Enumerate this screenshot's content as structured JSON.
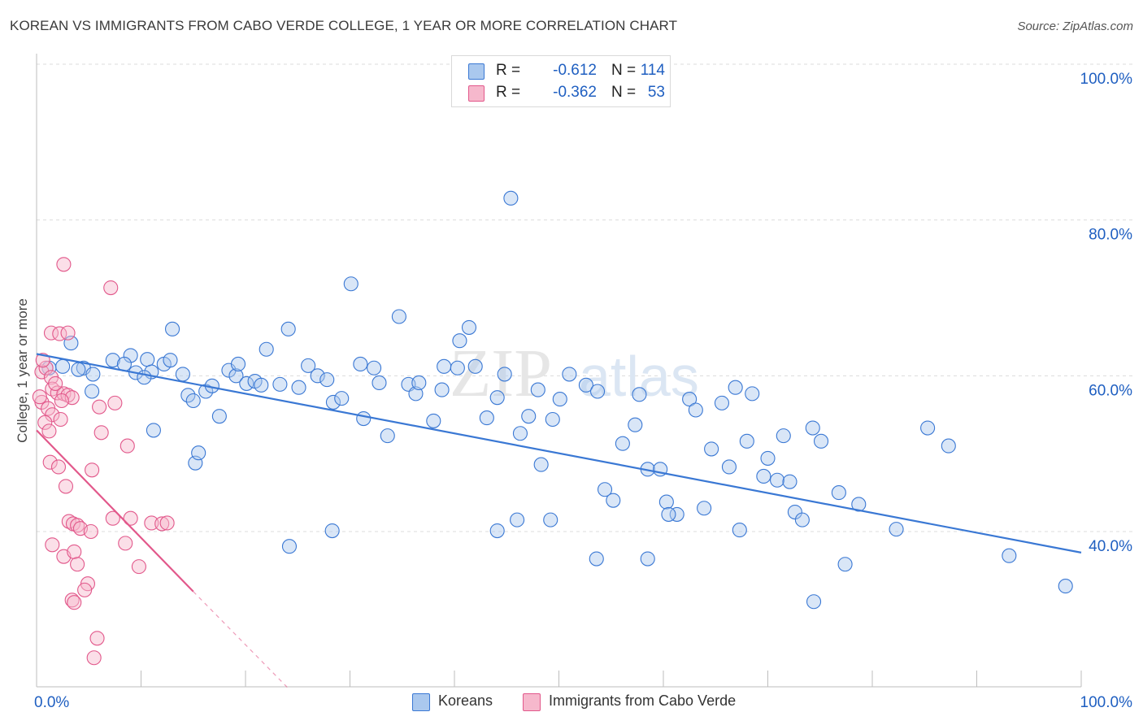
{
  "title": "KOREAN VS IMMIGRANTS FROM CABO VERDE COLLEGE, 1 YEAR OR MORE CORRELATION CHART",
  "source": "Source: ZipAtlas.com",
  "watermark": {
    "zip": "ZIP",
    "atlas": "atlas"
  },
  "colors": {
    "blue": "#3a78d4",
    "blue_fill": "#aac8ee",
    "blue_text": "#1f5fc1",
    "pink": "#e2588b",
    "pink_fill": "#f6b8cc",
    "grid": "#dcdcdc",
    "axis": "#bdbdbd"
  },
  "legend": {
    "rows": [
      {
        "r_label": "R =",
        "r_value": "-0.612",
        "n_label": "N =",
        "n_value": "114"
      },
      {
        "r_label": "R =",
        "r_value": "-0.362",
        "n_label": "N =",
        "n_value": "53"
      }
    ]
  },
  "chart_data": {
    "type": "scatter",
    "title": "KOREAN VS IMMIGRANTS FROM CABO VERDE COLLEGE, 1 YEAR OR MORE CORRELATION CHART",
    "xlabel": "",
    "ylabel": "College, 1 year or more",
    "xlim": [
      0,
      100
    ],
    "ylim": [
      20,
      100
    ],
    "x_tick_labels": [
      "0.0%",
      "100.0%"
    ],
    "y_ticks": [
      {
        "value": 100,
        "label": "100.0%"
      },
      {
        "value": 80,
        "label": "80.0%"
      },
      {
        "value": 60,
        "label": "60.0%"
      },
      {
        "value": 40,
        "label": "40.0%"
      }
    ],
    "series": [
      {
        "name": "Koreans",
        "color": "blue",
        "trend": {
          "x0": 0,
          "y0": 62.8,
          "x1": 100,
          "y1": 37.3
        },
        "points": [
          [
            1.2,
            61
          ],
          [
            2.5,
            61.2
          ],
          [
            4.5,
            61
          ],
          [
            3.3,
            64.2
          ],
          [
            4,
            60.8
          ],
          [
            7.3,
            62
          ],
          [
            9,
            62.6
          ],
          [
            5.3,
            58
          ],
          [
            10.6,
            62.1
          ],
          [
            8.4,
            61.5
          ],
          [
            5.4,
            60.2
          ],
          [
            11,
            60.5
          ],
          [
            9.5,
            60.4
          ],
          [
            12.2,
            61.5
          ],
          [
            10.3,
            59.8
          ],
          [
            14.5,
            57.5
          ],
          [
            13,
            66
          ],
          [
            11.2,
            53
          ],
          [
            15,
            56.8
          ],
          [
            14,
            60.2
          ],
          [
            12.8,
            62
          ],
          [
            15.2,
            48.8
          ],
          [
            15.5,
            50.1
          ],
          [
            16.2,
            58
          ],
          [
            16.8,
            58.7
          ],
          [
            17.5,
            54.8
          ],
          [
            18.4,
            60.7
          ],
          [
            19.1,
            60
          ],
          [
            20.1,
            59
          ],
          [
            20.9,
            59.3
          ],
          [
            22,
            63.4
          ],
          [
            21.5,
            58.8
          ],
          [
            23.3,
            58.9
          ],
          [
            24.1,
            66
          ],
          [
            25.1,
            58.5
          ],
          [
            26,
            61.3
          ],
          [
            26.9,
            60
          ],
          [
            27.8,
            59.5
          ],
          [
            28.4,
            56.6
          ],
          [
            29.2,
            57.1
          ],
          [
            30.1,
            71.8
          ],
          [
            31,
            61.5
          ],
          [
            32.3,
            61
          ],
          [
            31.3,
            54.5
          ],
          [
            32.8,
            59.1
          ],
          [
            33.6,
            52.3
          ],
          [
            34.7,
            67.6
          ],
          [
            35.6,
            58.9
          ],
          [
            36.3,
            57.7
          ],
          [
            36.6,
            59.1
          ],
          [
            38,
            54.2
          ],
          [
            38.8,
            58.2
          ],
          [
            39,
            61.2
          ],
          [
            40.3,
            61
          ],
          [
            40.5,
            64.5
          ],
          [
            41.4,
            66.2
          ],
          [
            42,
            61.2
          ],
          [
            43.1,
            54.6
          ],
          [
            44.1,
            57.2
          ],
          [
            44.8,
            60.2
          ],
          [
            45.4,
            82.8
          ],
          [
            46.3,
            52.6
          ],
          [
            47.1,
            54.8
          ],
          [
            48,
            58.2
          ],
          [
            48.3,
            48.6
          ],
          [
            49.4,
            54.4
          ],
          [
            50.1,
            57
          ],
          [
            51,
            60.2
          ],
          [
            52.6,
            58.8
          ],
          [
            53.7,
            58
          ],
          [
            54.4,
            45.4
          ],
          [
            55.2,
            44
          ],
          [
            56.1,
            51.3
          ],
          [
            57.3,
            53.7
          ],
          [
            57.7,
            57.6
          ],
          [
            58.5,
            48
          ],
          [
            59.7,
            48
          ],
          [
            60.3,
            43.8
          ],
          [
            61.3,
            42.2
          ],
          [
            62.5,
            57
          ],
          [
            63.1,
            55.6
          ],
          [
            63.9,
            43
          ],
          [
            64.6,
            50.6
          ],
          [
            65.6,
            56.5
          ],
          [
            66.3,
            48.3
          ],
          [
            66.9,
            58.5
          ],
          [
            68,
            51.6
          ],
          [
            68.5,
            57.7
          ],
          [
            69.6,
            47.1
          ],
          [
            70,
            49.4
          ],
          [
            70.9,
            46.6
          ],
          [
            71.5,
            52.3
          ],
          [
            72.6,
            42.5
          ],
          [
            73.3,
            41.5
          ],
          [
            74.3,
            53.3
          ],
          [
            75.1,
            51.6
          ],
          [
            76.8,
            45
          ],
          [
            77.4,
            35.8
          ],
          [
            78.7,
            43.5
          ],
          [
            82.3,
            40.3
          ],
          [
            85.3,
            53.3
          ],
          [
            87.3,
            51
          ],
          [
            93.1,
            36.9
          ],
          [
            98.5,
            33
          ],
          [
            60.5,
            42.2
          ],
          [
            49.2,
            41.5
          ],
          [
            46,
            41.5
          ],
          [
            53.6,
            36.5
          ],
          [
            58.5,
            36.5
          ],
          [
            67.3,
            40.2
          ],
          [
            74.4,
            31
          ],
          [
            28.3,
            40.1
          ],
          [
            24.2,
            38.1
          ],
          [
            19.3,
            61.5
          ],
          [
            44.1,
            40.1
          ],
          [
            72.1,
            46.4
          ]
        ]
      },
      {
        "name": "Immigrants from Cabo Verde",
        "color": "pink",
        "trend": {
          "x0": 0,
          "y0": 53,
          "x1": 15,
          "y1": 32.3
        },
        "trend_extension": {
          "x1": 24,
          "y1": 20
        },
        "points": [
          [
            1.4,
            65.5
          ],
          [
            2.2,
            65.4
          ],
          [
            3,
            65.5
          ],
          [
            2.6,
            74.3
          ],
          [
            7.1,
            71.3
          ],
          [
            0.5,
            60.5
          ],
          [
            0.9,
            61
          ],
          [
            1.4,
            59.8
          ],
          [
            1.5,
            58.3
          ],
          [
            2,
            57.8
          ],
          [
            2.6,
            57.7
          ],
          [
            3,
            57.5
          ],
          [
            3.4,
            57.2
          ],
          [
            0.5,
            56.6
          ],
          [
            1.1,
            55.8
          ],
          [
            1.5,
            55
          ],
          [
            2.3,
            54.4
          ],
          [
            6,
            56
          ],
          [
            7.5,
            56.5
          ],
          [
            6.2,
            52.7
          ],
          [
            8.7,
            51
          ],
          [
            1.3,
            48.9
          ],
          [
            2.1,
            48.3
          ],
          [
            5.3,
            47.9
          ],
          [
            2.8,
            45.8
          ],
          [
            3.1,
            41.3
          ],
          [
            3.5,
            41
          ],
          [
            7.3,
            41.7
          ],
          [
            9,
            41.7
          ],
          [
            11,
            41.1
          ],
          [
            12,
            41
          ],
          [
            12.5,
            41.1
          ],
          [
            3.9,
            40.8
          ],
          [
            4.2,
            40.4
          ],
          [
            5.2,
            40
          ],
          [
            1.5,
            38.3
          ],
          [
            8.5,
            38.5
          ],
          [
            2.6,
            36.8
          ],
          [
            3.6,
            37.4
          ],
          [
            9.8,
            35.5
          ],
          [
            3.9,
            35.8
          ],
          [
            4.9,
            33.3
          ],
          [
            3.4,
            31.2
          ],
          [
            3.6,
            30.9
          ],
          [
            5.8,
            26.3
          ],
          [
            5.5,
            23.8
          ],
          [
            4.6,
            32.5
          ],
          [
            0.6,
            62
          ],
          [
            0.8,
            54
          ],
          [
            1.2,
            52.9
          ],
          [
            2.4,
            56.8
          ],
          [
            0.3,
            57.3
          ],
          [
            1.8,
            59
          ]
        ]
      }
    ]
  },
  "bottom_legend": [
    {
      "label": "Koreans",
      "color": "blue"
    },
    {
      "label": "Immigrants from Cabo Verde",
      "color": "pink"
    }
  ]
}
